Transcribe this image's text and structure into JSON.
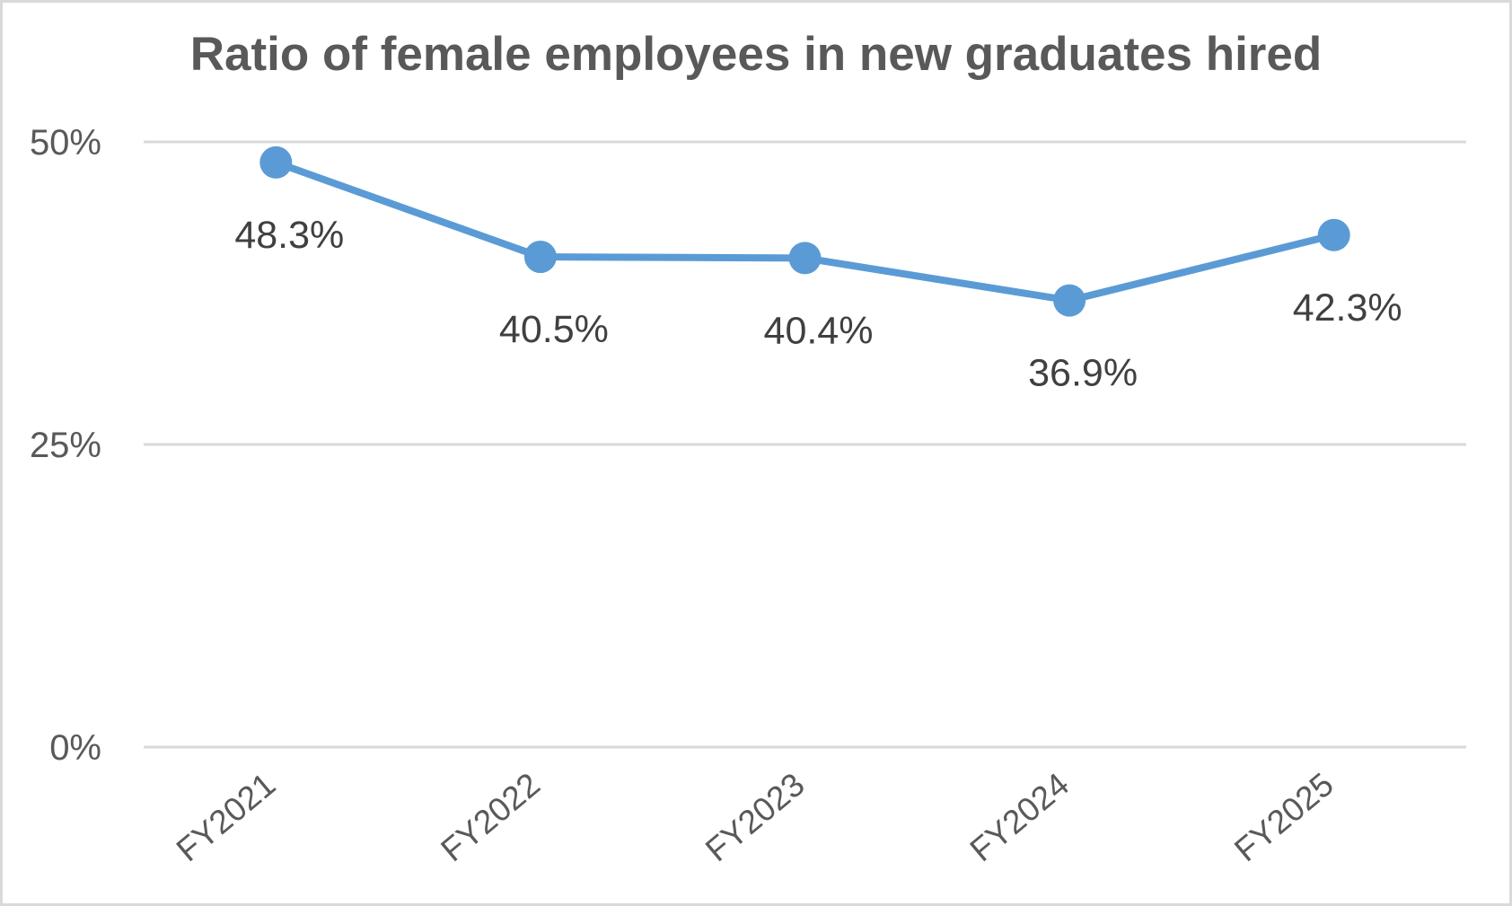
{
  "chart_data": {
    "type": "line",
    "title": "Ratio of female employees in new graduates hired",
    "xlabel": "",
    "ylabel": "",
    "categories": [
      "FY2021",
      "FY2022",
      "FY2023",
      "FY2024",
      "FY2025"
    ],
    "series": [
      {
        "name": "Ratio of female employees",
        "values": [
          48.3,
          40.5,
          40.4,
          36.9,
          42.3
        ],
        "data_labels": [
          "48.3%",
          "40.5%",
          "40.4%",
          "36.9%",
          "42.3%"
        ],
        "color": "#5b9bd5"
      }
    ],
    "y_ticks": [
      {
        "value": 0,
        "label": "0%"
      },
      {
        "value": 25,
        "label": "25%"
      },
      {
        "value": 50,
        "label": "50%"
      }
    ],
    "ylim": [
      0,
      50
    ],
    "grid": true,
    "legend": "none"
  },
  "colors": {
    "line": "#5b9bd5",
    "grid": "#d9d9d9",
    "border": "#d9d9d9",
    "title": "#595959",
    "axis_text": "#595959",
    "data_label": "#404040"
  }
}
